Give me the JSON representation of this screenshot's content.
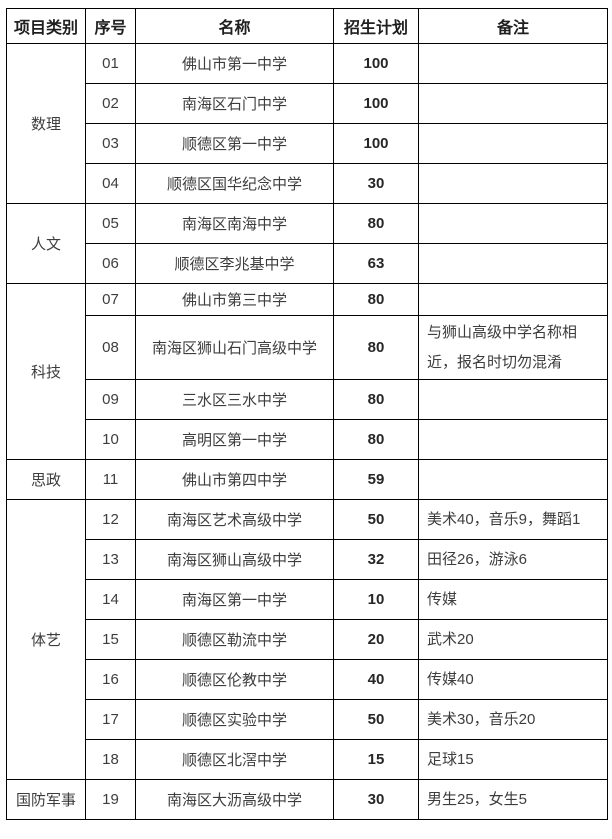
{
  "table": {
    "headers": {
      "category": "项目类别",
      "no": "序号",
      "name": "名称",
      "plan": "招生计划",
      "remark": "备注"
    },
    "categories": [
      {
        "label": "数理"
      },
      {
        "label": "人文"
      },
      {
        "label": "科技"
      },
      {
        "label": "思政"
      },
      {
        "label": "体艺"
      },
      {
        "label": "国防军事"
      }
    ],
    "rows": [
      {
        "no": "01",
        "name": "佛山市第一中学",
        "plan": "100",
        "remark": ""
      },
      {
        "no": "02",
        "name": "南海区石门中学",
        "plan": "100",
        "remark": ""
      },
      {
        "no": "03",
        "name": "顺德区第一中学",
        "plan": "100",
        "remark": ""
      },
      {
        "no": "04",
        "name": "顺德区国华纪念中学",
        "plan": "30",
        "remark": ""
      },
      {
        "no": "05",
        "name": "南海区南海中学",
        "plan": "80",
        "remark": ""
      },
      {
        "no": "06",
        "name": "顺德区李兆基中学",
        "plan": "63",
        "remark": ""
      },
      {
        "no": "07",
        "name": "佛山市第三中学",
        "plan": "80",
        "remark": ""
      },
      {
        "no": "08",
        "name": "南海区狮山石门高级中学",
        "plan": "80",
        "remark": "与狮山高级中学名称相近，报名时切勿混淆"
      },
      {
        "no": "09",
        "name": "三水区三水中学",
        "plan": "80",
        "remark": ""
      },
      {
        "no": "10",
        "name": "高明区第一中学",
        "plan": "80",
        "remark": ""
      },
      {
        "no": "11",
        "name": "佛山市第四中学",
        "plan": "59",
        "remark": ""
      },
      {
        "no": "12",
        "name": "南海区艺术高级中学",
        "plan": "50",
        "remark": "美术40，音乐9，舞蹈1"
      },
      {
        "no": "13",
        "name": "南海区狮山高级中学",
        "plan": "32",
        "remark": "田径26，游泳6"
      },
      {
        "no": "14",
        "name": "南海区第一中学",
        "plan": "10",
        "remark": "传媒"
      },
      {
        "no": "15",
        "name": "顺德区勒流中学",
        "plan": "20",
        "remark": "武术20"
      },
      {
        "no": "16",
        "name": "顺德区伦教中学",
        "plan": "40",
        "remark": "传媒40"
      },
      {
        "no": "17",
        "name": "顺德区实验中学",
        "plan": "50",
        "remark": "美术30，音乐20"
      },
      {
        "no": "18",
        "name": "顺德区北滘中学",
        "plan": "15",
        "remark": "足球15"
      },
      {
        "no": "19",
        "name": "南海区大沥高级中学",
        "plan": "30",
        "remark": "男生25，女生5"
      }
    ]
  },
  "colors": {
    "border": "#000000",
    "body_text": "#3d3d3d",
    "header_text": "#1f1f1f",
    "background": "#ffffff"
  }
}
